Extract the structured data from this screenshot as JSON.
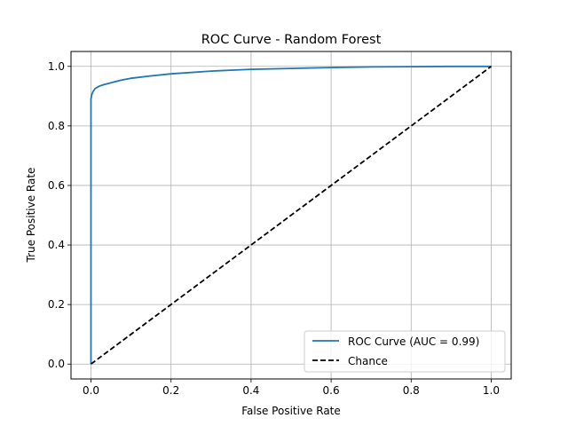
{
  "chart_data": {
    "type": "line",
    "title": "ROC Curve - Random Forest",
    "xlabel": "False Positive Rate",
    "ylabel": "True Positive Rate",
    "xlim": [
      -0.05,
      1.05
    ],
    "ylim": [
      -0.05,
      1.05
    ],
    "xticks": [
      0.0,
      0.2,
      0.4,
      0.6,
      0.8,
      1.0
    ],
    "yticks": [
      0.0,
      0.2,
      0.4,
      0.6,
      0.8,
      1.0
    ],
    "xtick_labels": [
      "0.0",
      "0.2",
      "0.4",
      "0.6",
      "0.8",
      "1.0"
    ],
    "ytick_labels": [
      "0.0",
      "0.2",
      "0.4",
      "0.6",
      "0.8",
      "1.0"
    ],
    "grid": true,
    "legend_position": "lower right",
    "series": [
      {
        "name": "ROC Curve (AUC = 0.99)",
        "color": "#1f77b4",
        "style": "solid",
        "x": [
          0.0,
          0.0,
          0.002,
          0.005,
          0.01,
          0.02,
          0.03,
          0.05,
          0.08,
          0.1,
          0.15,
          0.2,
          0.3,
          0.4,
          0.5,
          0.6,
          0.7,
          0.8,
          0.9,
          1.0
        ],
        "y": [
          0.0,
          0.89,
          0.905,
          0.915,
          0.925,
          0.933,
          0.938,
          0.945,
          0.955,
          0.96,
          0.968,
          0.975,
          0.984,
          0.99,
          0.993,
          0.996,
          0.998,
          0.999,
          1.0,
          1.0
        ]
      },
      {
        "name": "Chance",
        "color": "#000000",
        "style": "dashed",
        "x": [
          0.0,
          1.0
        ],
        "y": [
          0.0,
          1.0
        ]
      }
    ],
    "auc": 0.99
  }
}
